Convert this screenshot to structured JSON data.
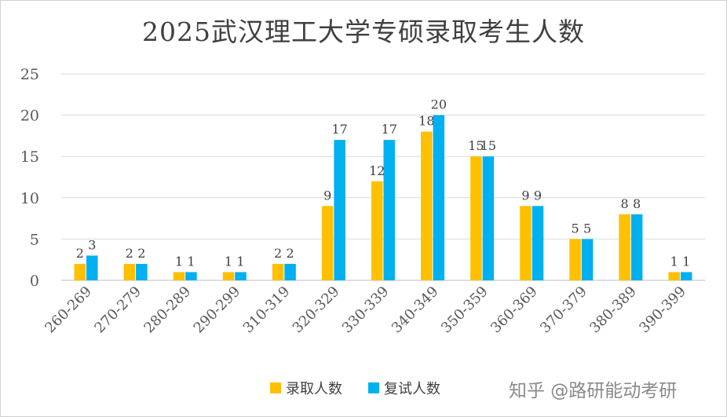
{
  "chart_data": {
    "type": "bar",
    "title": "2025武汉理工大学专硕录取考生人数",
    "categories": [
      "260-269",
      "270-279",
      "280-289",
      "290-299",
      "310-319",
      "320-329",
      "330-339",
      "340-349",
      "350-359",
      "360-369",
      "370-379",
      "380-389",
      "390-399"
    ],
    "series": [
      {
        "name": "录取人数",
        "color": "#FFC000",
        "values": [
          2,
          2,
          1,
          1,
          2,
          9,
          12,
          18,
          15,
          9,
          5,
          8,
          1
        ]
      },
      {
        "name": "复试人数",
        "color": "#00B0F0",
        "values": [
          3,
          2,
          1,
          1,
          2,
          17,
          17,
          20,
          15,
          9,
          5,
          8,
          1
        ]
      }
    ],
    "yticks": [
      0,
      5,
      10,
      15,
      20,
      25
    ],
    "ylim": [
      0,
      25
    ],
    "grid": true,
    "legend_position": "bottom"
  },
  "watermark": "知乎 @路研能动考研"
}
